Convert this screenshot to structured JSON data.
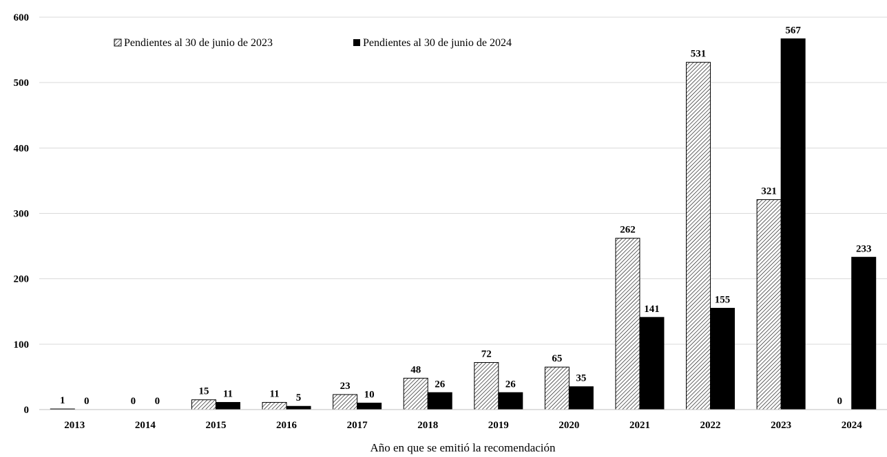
{
  "chart_data": {
    "type": "bar",
    "categories": [
      "2013",
      "2014",
      "2015",
      "2016",
      "2017",
      "2018",
      "2019",
      "2020",
      "2021",
      "2022",
      "2023",
      "2024"
    ],
    "series": [
      {
        "name": "Pendientes al 30 de junio de 2023",
        "values": [
          1,
          0,
          15,
          11,
          23,
          48,
          72,
          65,
          262,
          531,
          321,
          0
        ],
        "fill": "hatch"
      },
      {
        "name": "Pendientes al 30 de junio de 2024",
        "values": [
          0,
          0,
          11,
          5,
          10,
          26,
          26,
          35,
          141,
          155,
          567,
          233
        ],
        "fill": "#000000"
      }
    ],
    "data_labels": {
      "series_0": [
        "1",
        "0",
        "15",
        "11",
        "23",
        "48",
        "72",
        "65",
        "262",
        "531",
        "321",
        "0"
      ],
      "series_1": [
        "0",
        "0",
        "11",
        "5",
        "10",
        "26",
        "26",
        "35",
        "141",
        "155",
        "567",
        "233"
      ]
    },
    "title": "",
    "xlabel": "Año en que se emitió la recomendación",
    "ylabel": "",
    "ylim": [
      0,
      600
    ],
    "yticks": [
      "0",
      "100",
      "200",
      "300",
      "400",
      "500",
      "600"
    ],
    "grid": true,
    "legend": "top-left",
    "colors": {
      "bar_edge": "#000000",
      "grid": "#d9d9d9",
      "axis": "#bfbfbf"
    }
  }
}
